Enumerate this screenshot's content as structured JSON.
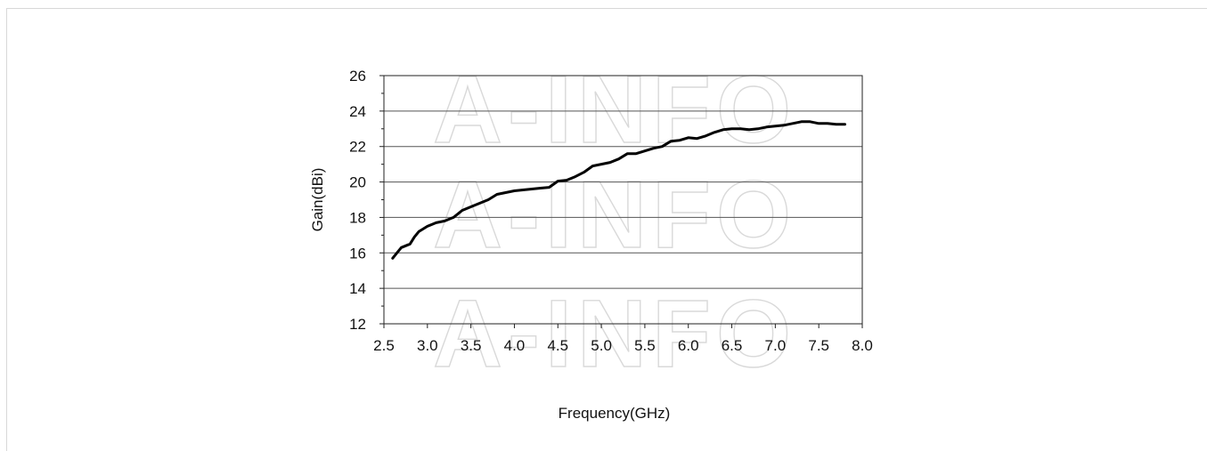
{
  "watermark": "A-INFO",
  "chart_data": {
    "type": "line",
    "title": "",
    "xlabel": "Frequency(GHz)",
    "ylabel": "Gain(dBi)",
    "xlim": [
      2.5,
      8.0
    ],
    "ylim": [
      12,
      26
    ],
    "x_ticks": [
      "2.5",
      "3.0",
      "3.5",
      "4.0",
      "4.5",
      "5.0",
      "5.5",
      "6.0",
      "6.5",
      "7.0",
      "7.5",
      "8.0"
    ],
    "y_ticks": [
      "12",
      "14",
      "16",
      "18",
      "20",
      "22",
      "24",
      "26"
    ],
    "grid": "horizontal",
    "series": [
      {
        "color": "#000000",
        "x": [
          2.6,
          2.65,
          2.7,
          2.75,
          2.8,
          2.85,
          2.9,
          3.0,
          3.1,
          3.2,
          3.3,
          3.4,
          3.5,
          3.6,
          3.7,
          3.8,
          3.9,
          4.0,
          4.1,
          4.2,
          4.3,
          4.4,
          4.5,
          4.6,
          4.7,
          4.8,
          4.9,
          5.0,
          5.1,
          5.2,
          5.3,
          5.4,
          5.5,
          5.6,
          5.7,
          5.8,
          5.9,
          6.0,
          6.1,
          6.2,
          6.3,
          6.4,
          6.5,
          6.6,
          6.7,
          6.8,
          6.9,
          7.0,
          7.1,
          7.2,
          7.3,
          7.4,
          7.5,
          7.6,
          7.7,
          7.8
        ],
        "y": [
          15.7,
          16.0,
          16.3,
          16.4,
          16.5,
          16.9,
          17.2,
          17.5,
          17.7,
          17.8,
          18.0,
          18.4,
          18.6,
          18.8,
          19.0,
          19.3,
          19.4,
          19.5,
          19.55,
          19.6,
          19.65,
          19.7,
          20.05,
          20.1,
          20.3,
          20.55,
          20.9,
          21.0,
          21.1,
          21.3,
          21.6,
          21.6,
          21.75,
          21.9,
          22.0,
          22.3,
          22.35,
          22.5,
          22.45,
          22.6,
          22.8,
          22.95,
          23.0,
          23.0,
          22.95,
          23.0,
          23.1,
          23.15,
          23.2,
          23.3,
          23.4,
          23.4,
          23.3,
          23.3,
          23.25,
          23.25
        ]
      }
    ]
  }
}
